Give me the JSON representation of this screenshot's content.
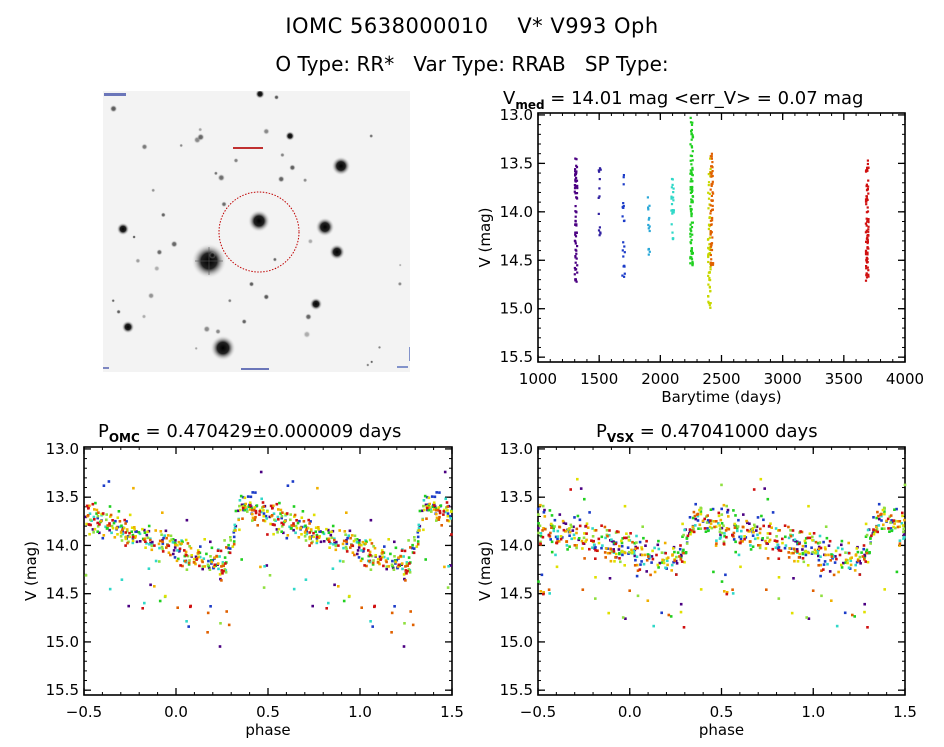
{
  "header": {
    "title": "IOMC 5638000010    V* V993 Oph",
    "subtitle": "O Type: RR*   Var Type: RRAB   SP Type:"
  },
  "finding_chart": {
    "description": "Sky image of the field with red dotted circle around target star",
    "circle_color": "#cc0000",
    "background": "#f4f4f4"
  },
  "chart_data": [
    {
      "id": "lightcurve",
      "type": "scatter",
      "title_main": "V",
      "title_sub": "med",
      "title_rest": " = 14.01 mag <err_V> = 0.07 mag",
      "xlabel": "Barytime (days)",
      "ylabel": "V (mag)",
      "xlim": [
        1000,
        4000
      ],
      "ylim": [
        15.55,
        12.98
      ],
      "xticks": [
        1000,
        1500,
        2000,
        2500,
        3000,
        3500,
        4000
      ],
      "xtick_labels": [
        "1000",
        "1500",
        "2000",
        "2500",
        "3000",
        "3500",
        "4000"
      ],
      "yticks": [
        13.0,
        13.5,
        14.0,
        14.5,
        15.0,
        15.5
      ],
      "ytick_labels": [
        "13.0",
        "13.5",
        "14.0",
        "14.5",
        "15.0",
        "15.5"
      ],
      "grid": false,
      "median_V": 14.01,
      "mean_err_V": 0.07,
      "clusters": [
        {
          "x": 1310,
          "ymin": 13.45,
          "ymax": 14.72,
          "n": 70,
          "color": "#4b0082"
        },
        {
          "x": 1505,
          "ymin": 13.55,
          "ymax": 14.24,
          "n": 14,
          "color": "#3020a0"
        },
        {
          "x": 1700,
          "ymin": 13.62,
          "ymax": 14.67,
          "n": 22,
          "color": "#1c3cc8"
        },
        {
          "x": 1905,
          "ymin": 13.85,
          "ymax": 14.44,
          "n": 14,
          "color": "#2aa8d8"
        },
        {
          "x": 2100,
          "ymin": 13.66,
          "ymax": 14.28,
          "n": 22,
          "color": "#30d8c8"
        },
        {
          "x": 2255,
          "ymin": 13.03,
          "ymax": 14.55,
          "n": 90,
          "color": "#20d020"
        },
        {
          "x": 2400,
          "ymin": 13.45,
          "ymax": 14.99,
          "n": 60,
          "color": "#c8d800"
        },
        {
          "x": 2420,
          "ymin": 13.4,
          "ymax": 14.55,
          "n": 60,
          "color": "#e06000"
        },
        {
          "x": 3690,
          "ymin": 13.47,
          "ymax": 14.71,
          "n": 90,
          "color": "#d01010"
        }
      ]
    },
    {
      "id": "phase-omc",
      "type": "scatter",
      "title_main": "P",
      "title_sub": "OMC",
      "title_rest": " = 0.470429±0.000009 days",
      "period_days": 0.470429,
      "period_err_days": 9e-06,
      "xlabel": "phase",
      "ylabel": "V (mag)",
      "xlim": [
        -0.5,
        1.5
      ],
      "ylim": [
        15.55,
        12.98
      ],
      "xticks": [
        -0.5,
        0.0,
        0.5,
        1.0,
        1.5
      ],
      "xtick_labels": [
        "−0.5",
        "0.0",
        "0.5",
        "1.0",
        "1.5"
      ],
      "yticks": [
        13.0,
        13.5,
        14.0,
        14.5,
        15.0,
        15.5
      ],
      "ytick_labels": [
        "13.0",
        "13.5",
        "14.0",
        "14.5",
        "15.0",
        "15.5"
      ],
      "grid": false,
      "curve": {
        "max_phase": 0.36,
        "bright_mag": 13.6,
        "faint_mag": 14.22,
        "scatter": 0.13
      },
      "points_per_color": 45,
      "colors": [
        "#4b0082",
        "#1c3cc8",
        "#30d8c8",
        "#20d020",
        "#90e040",
        "#e0e000",
        "#f0b000",
        "#e06000",
        "#d01010"
      ],
      "seed": 7
    },
    {
      "id": "phase-vsx",
      "type": "scatter",
      "title_main": "P",
      "title_sub": "VSX",
      "title_rest": " = 0.47041000 days",
      "period_days": 0.47041,
      "xlabel": "phase",
      "ylabel": "V (mag)",
      "xlim": [
        -0.5,
        1.5
      ],
      "ylim": [
        15.55,
        12.98
      ],
      "xticks": [
        -0.5,
        0.0,
        0.5,
        1.0,
        1.5
      ],
      "xtick_labels": [
        "−0.5",
        "0.0",
        "0.5",
        "1.0",
        "1.5"
      ],
      "yticks": [
        13.0,
        13.5,
        14.0,
        14.5,
        15.0,
        15.5
      ],
      "ytick_labels": [
        "13.0",
        "13.5",
        "14.0",
        "14.5",
        "15.0",
        "15.5"
      ],
      "grid": false,
      "curve": {
        "max_phase": 0.36,
        "bright_mag": 13.72,
        "faint_mag": 14.18,
        "scatter": 0.16
      },
      "points_per_color": 45,
      "colors": [
        "#4b0082",
        "#1c3cc8",
        "#30d8c8",
        "#20d020",
        "#90e040",
        "#e0e000",
        "#f0b000",
        "#e06000",
        "#d01010"
      ],
      "seed": 11
    }
  ]
}
